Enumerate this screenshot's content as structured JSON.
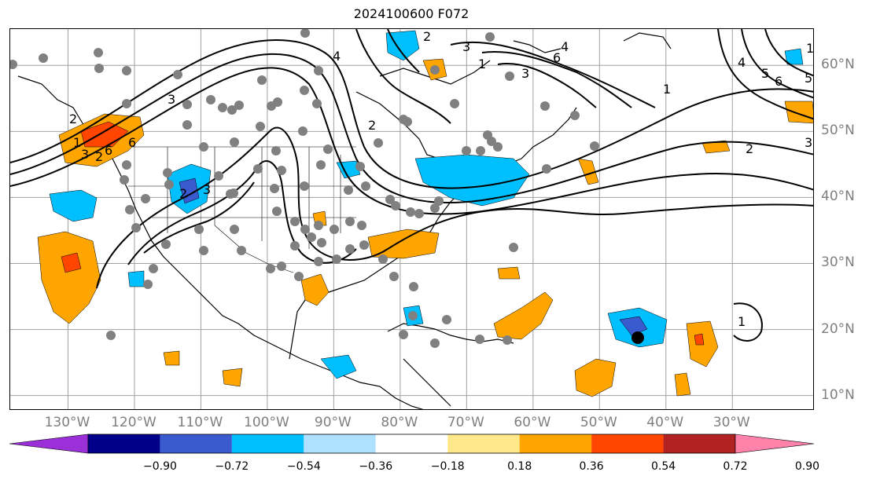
{
  "title": "2024100600 F072",
  "lon_axis": {
    "ticks": [
      {
        "value": -130,
        "label": "130°W"
      },
      {
        "value": -120,
        "label": "120°W"
      },
      {
        "value": -110,
        "label": "110°W"
      },
      {
        "value": -100,
        "label": "100°W"
      },
      {
        "value": -90,
        "label": "90°W"
      },
      {
        "value": -80,
        "label": "80°W"
      },
      {
        "value": -70,
        "label": "70°W"
      },
      {
        "value": -60,
        "label": "60°W"
      },
      {
        "value": -50,
        "label": "50°W"
      },
      {
        "value": -40,
        "label": "40°W"
      },
      {
        "value": -30,
        "label": "30°W"
      }
    ]
  },
  "lat_axis": {
    "ticks": [
      {
        "value": 60,
        "label": "60°N"
      },
      {
        "value": 50,
        "label": "50°N"
      },
      {
        "value": 40,
        "label": "40°N"
      },
      {
        "value": 30,
        "label": "30°N"
      },
      {
        "value": 20,
        "label": "20°N"
      },
      {
        "value": 10,
        "label": "10°N"
      }
    ]
  },
  "colorbar": {
    "labels": [
      "−0.90",
      "−0.72",
      "−0.54",
      "−0.36",
      "−0.18",
      "0.18",
      "0.36",
      "0.54",
      "0.72",
      "0.90"
    ],
    "colors": [
      "#9b30d9",
      "#00008b",
      "#3a5bd0",
      "#00bfff",
      "#b0e0ff",
      "#ffffff",
      "#ffe88a",
      "#ffa500",
      "#ff4500",
      "#b22222",
      "#ff82ab"
    ],
    "extend": "both"
  },
  "contour_labels": [
    "3",
    "2",
    "1",
    "3",
    "2",
    "4",
    "6",
    "2",
    "4",
    "6",
    "1",
    "3",
    "2",
    "3",
    "4",
    "5",
    "6",
    "1",
    "2",
    "6",
    "5",
    "3",
    "1",
    "2",
    "3",
    "1"
  ],
  "colors": {
    "tick_label": "#7f7f7f",
    "grid": "#a0a0a0",
    "contour": "#000000",
    "dot": "#808080",
    "orange": "#ffa500",
    "red": "#ff4500",
    "cyan": "#00bfff",
    "blue": "#3a5bd0"
  }
}
